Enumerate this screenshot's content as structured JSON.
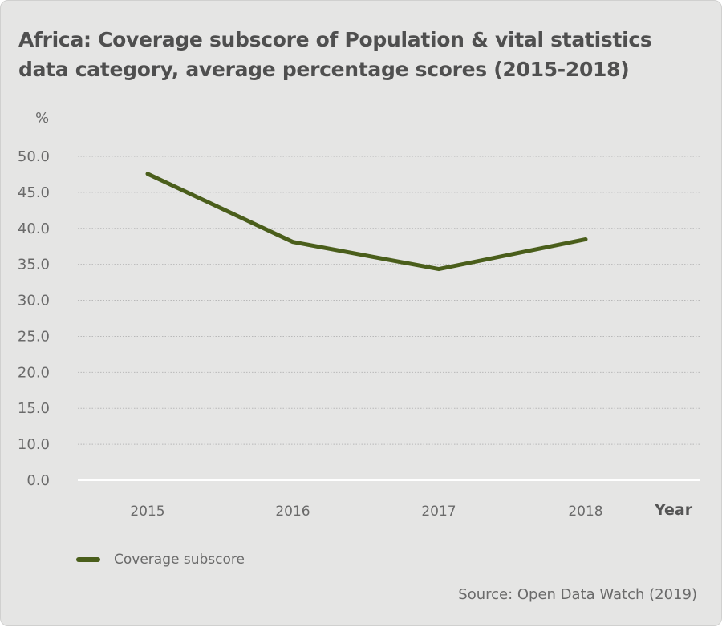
{
  "chart_data": {
    "type": "line",
    "title": "Africa: Coverage subscore of Population & vital statistics data category, average percentage scores (2015-2018)",
    "ylabel": "%",
    "xlabel": "Year",
    "x": [
      "2015",
      "2016",
      "2017",
      "2018"
    ],
    "y_ticks": [
      "0.0",
      "10.0",
      "15.0",
      "20.0",
      "25.0",
      "30.0",
      "35.0",
      "40.0",
      "45.0",
      "50.0"
    ],
    "ylim": [
      0,
      50
    ],
    "series": [
      {
        "name": "Coverage subscore",
        "values": [
          47.3,
          36.8,
          32.6,
          37.2
        ]
      }
    ],
    "grid": true,
    "legend_position": "bottom-left",
    "source": "Source: Open Data Watch (2019)",
    "colors": {
      "line": "#4a5e1b",
      "background": "#e5e5e4",
      "grid": "#b8b8b8",
      "text": "#6a6a6a"
    }
  }
}
